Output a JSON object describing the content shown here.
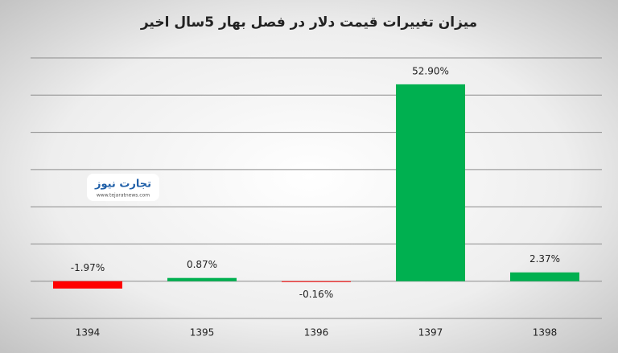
{
  "chart_data": {
    "type": "bar",
    "title": "میزان تغییرات قیمت دلار در فصل بهار 5سال اخیر",
    "categories": [
      "1394",
      "1395",
      "1396",
      "1397",
      "1398"
    ],
    "values": [
      -1.97,
      0.87,
      -0.16,
      52.9,
      2.37
    ],
    "value_labels": [
      "-1.97%",
      "0.87%",
      "-0.16%",
      "52.90%",
      "2.37%"
    ],
    "colors": [
      "#ff0000",
      "#00b050",
      "#ff0000",
      "#00b050",
      "#00b050"
    ],
    "ylim": [
      -10,
      60
    ],
    "yticks": [
      -10,
      0,
      10,
      20,
      30,
      40,
      50,
      60
    ],
    "grid": true,
    "watermark": {
      "name": "تجارت نیوز",
      "url": "www.tejaratnews.com"
    }
  }
}
